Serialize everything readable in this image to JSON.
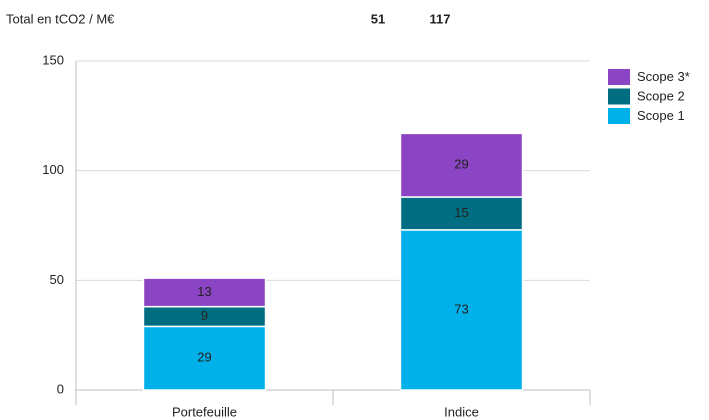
{
  "chart_data": {
    "type": "stacked_bar",
    "title": "Total en tCO2 / M€",
    "categories": [
      "Portefeuille",
      "Indice"
    ],
    "totals": [
      51,
      117
    ],
    "series": [
      {
        "name": "Scope 1",
        "color": "#00b0e8",
        "values": [
          29,
          73
        ]
      },
      {
        "name": "Scope 2",
        "color": "#006d80",
        "values": [
          9,
          15
        ]
      },
      {
        "name": "Scope 3*",
        "color": "#8b44c4",
        "values": [
          13,
          29
        ]
      }
    ],
    "ylim": [
      0,
      150
    ],
    "yticks": [
      0,
      50,
      100,
      150
    ],
    "grid": true,
    "legend": "right"
  }
}
